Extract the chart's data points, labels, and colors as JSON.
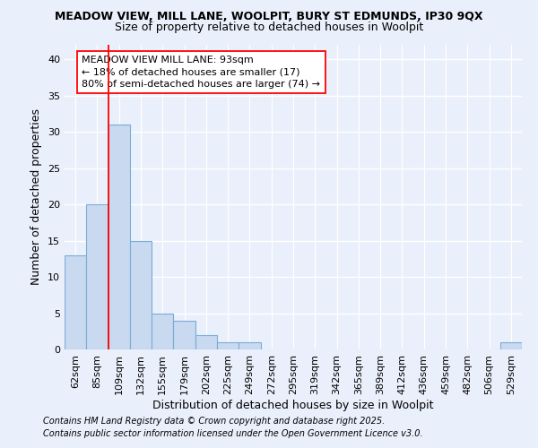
{
  "title_line1": "MEADOW VIEW, MILL LANE, WOOLPIT, BURY ST EDMUNDS, IP30 9QX",
  "title_line2": "Size of property relative to detached houses in Woolpit",
  "xlabel": "Distribution of detached houses by size in Woolpit",
  "ylabel": "Number of detached properties",
  "categories": [
    "62sqm",
    "85sqm",
    "109sqm",
    "132sqm",
    "155sqm",
    "179sqm",
    "202sqm",
    "225sqm",
    "249sqm",
    "272sqm",
    "295sqm",
    "319sqm",
    "342sqm",
    "365sqm",
    "389sqm",
    "412sqm",
    "436sqm",
    "459sqm",
    "482sqm",
    "506sqm",
    "529sqm"
  ],
  "values": [
    13,
    20,
    31,
    15,
    5,
    4,
    2,
    1,
    1,
    0,
    0,
    0,
    0,
    0,
    0,
    0,
    0,
    0,
    0,
    0,
    1
  ],
  "bar_color": "#c8d9f0",
  "bar_edge_color": "#7aadd6",
  "ylim": [
    0,
    42
  ],
  "yticks": [
    0,
    5,
    10,
    15,
    20,
    25,
    30,
    35,
    40
  ],
  "annotation_line1": "MEADOW VIEW MILL LANE: 93sqm",
  "annotation_line2": "← 18% of detached houses are smaller (17)",
  "annotation_line3": "80% of semi-detached houses are larger (74) →",
  "red_line_x": 1.5,
  "footer_line1": "Contains HM Land Registry data © Crown copyright and database right 2025.",
  "footer_line2": "Contains public sector information licensed under the Open Government Licence v3.0.",
  "bg_color": "#eaf0fb",
  "plot_bg_color": "#eaf0fb",
  "grid_color": "#ffffff",
  "title_fontsize": 9,
  "title2_fontsize": 9,
  "axis_label_fontsize": 9,
  "tick_fontsize": 8,
  "annotation_fontsize": 8,
  "footer_fontsize": 7
}
